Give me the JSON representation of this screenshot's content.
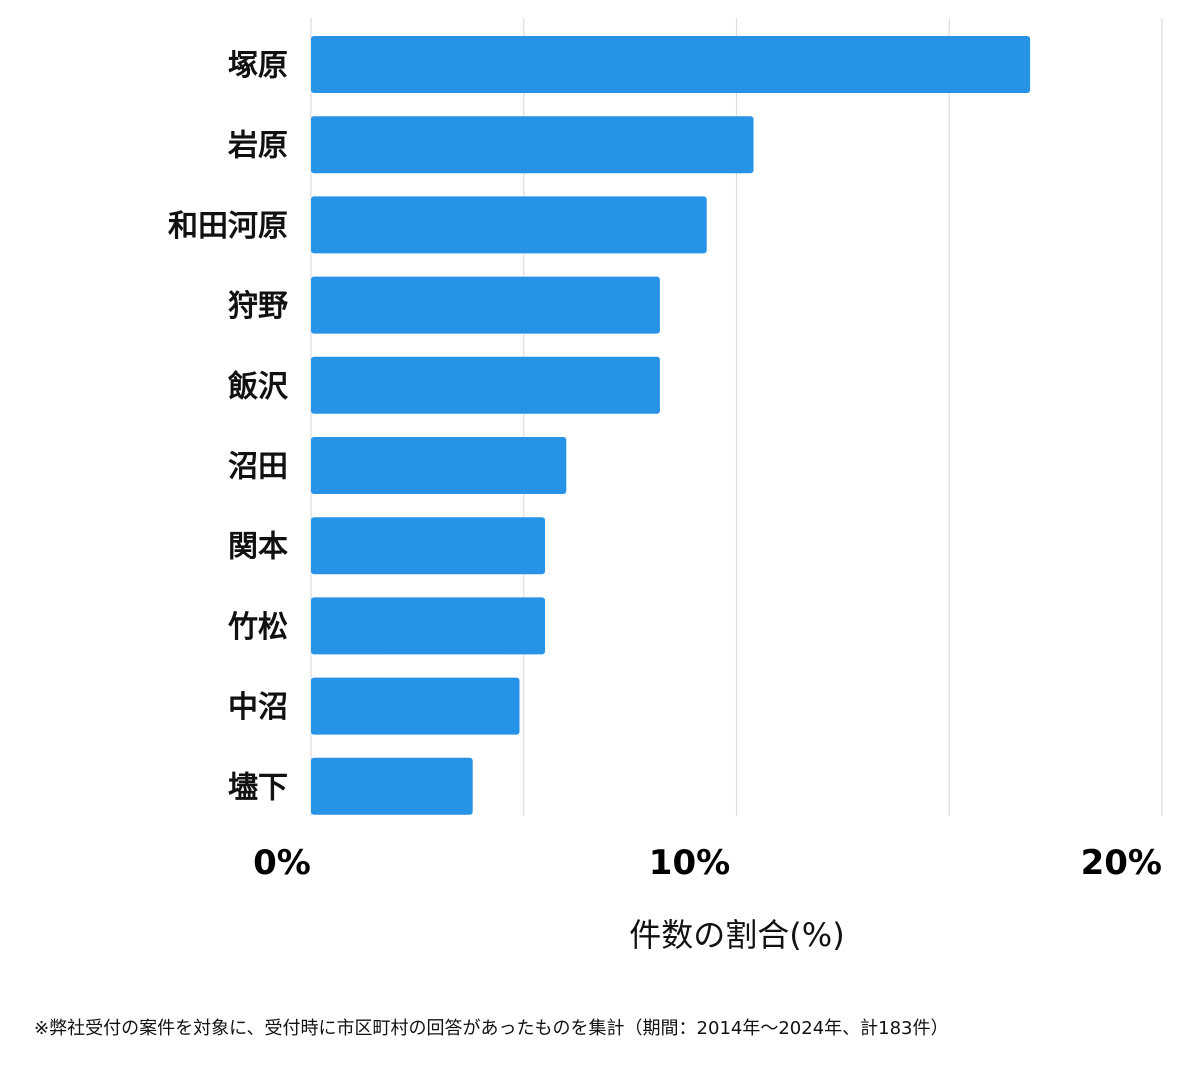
{
  "chart_data": {
    "type": "bar",
    "orientation": "horizontal",
    "categories": [
      "塚原",
      "岩原",
      "和田河原",
      "狩野",
      "飯沢",
      "沼田",
      "関本",
      "竹松",
      "中沼",
      "壗下"
    ],
    "values": [
      16.9,
      10.4,
      9.3,
      8.2,
      8.2,
      6.0,
      5.5,
      5.5,
      4.9,
      3.8
    ],
    "xlim": [
      0,
      20
    ],
    "x_ticks": [
      {
        "value": 0,
        "label": "0%"
      },
      {
        "value": 10,
        "label": "10%"
      },
      {
        "value": 20,
        "label": "20%"
      }
    ],
    "gridlines": [
      0,
      5,
      10,
      15,
      20
    ],
    "grid": true,
    "legend": "none",
    "xlabel": "件数の割合(%)",
    "ylabel": "",
    "title": "",
    "bar_color": "#2693e6",
    "grid_color": "#dddddd"
  },
  "footnote": "※弊社受付の案件を対象に、受付時に市区町村の回答があったものを集計（期間：2014年～2024年、計183件）"
}
